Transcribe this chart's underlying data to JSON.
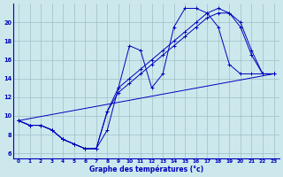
{
  "title": "",
  "xlabel": "Graphe des températures (°c)",
  "ylabel": "",
  "background_color": "#cde8ed",
  "line_color": "#0000bb",
  "grid_color": "#9bbfc5",
  "xlim": [
    -0.5,
    23.5
  ],
  "ylim": [
    5.5,
    22.0
  ],
  "xticks": [
    0,
    1,
    2,
    3,
    4,
    5,
    6,
    7,
    8,
    9,
    10,
    11,
    12,
    13,
    14,
    15,
    16,
    17,
    18,
    19,
    20,
    21,
    22,
    23
  ],
  "yticks": [
    6,
    8,
    10,
    12,
    14,
    16,
    18,
    20
  ],
  "line1_x": [
    0,
    1,
    2,
    3,
    4,
    5,
    6,
    7,
    8,
    9,
    10,
    11,
    12,
    13,
    14,
    15,
    16,
    17,
    18,
    19,
    20,
    21,
    22,
    23
  ],
  "line1_y": [
    9.5,
    9.0,
    9.0,
    8.5,
    7.5,
    7.0,
    6.5,
    6.5,
    8.5,
    13.0,
    17.5,
    17.0,
    13.0,
    14.5,
    19.5,
    21.5,
    21.5,
    21.0,
    19.5,
    15.5,
    14.5,
    14.5,
    14.5,
    14.5
  ],
  "line2_x": [
    0,
    1,
    2,
    3,
    4,
    5,
    6,
    7,
    8,
    9,
    10,
    11,
    12,
    13,
    14,
    15,
    16,
    17,
    18,
    19,
    20,
    21,
    22,
    23
  ],
  "line2_y": [
    9.5,
    9.0,
    9.0,
    8.5,
    7.5,
    7.0,
    6.5,
    6.5,
    10.5,
    13.0,
    14.0,
    15.0,
    16.0,
    17.0,
    18.0,
    19.0,
    20.0,
    21.0,
    21.5,
    21.0,
    19.5,
    16.5,
    14.5,
    14.5
  ],
  "line3_x": [
    0,
    1,
    2,
    3,
    4,
    5,
    6,
    7,
    8,
    9,
    10,
    11,
    12,
    13,
    14,
    15,
    16,
    17,
    18,
    19,
    20,
    21,
    22,
    23
  ],
  "line3_y": [
    9.5,
    9.0,
    9.0,
    8.5,
    7.5,
    7.0,
    6.5,
    6.5,
    10.5,
    12.5,
    13.5,
    14.5,
    15.5,
    16.5,
    17.5,
    18.5,
    19.5,
    20.5,
    21.0,
    21.0,
    20.0,
    17.0,
    14.5,
    14.5
  ],
  "line4_x": [
    0,
    23
  ],
  "line4_y": [
    9.5,
    14.5
  ],
  "marker_style": "+",
  "marker_size": 3.5,
  "line_width": 0.7,
  "tick_fontsize": 4.2,
  "xlabel_fontsize": 5.5
}
